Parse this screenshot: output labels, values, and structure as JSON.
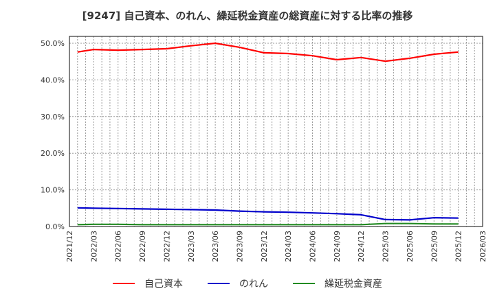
{
  "title": "[9247]  自己資本、のれん、繰延税金資産の総資産に対する比率の推移",
  "colors": {
    "equity": "#ff0000",
    "goodwill": "#0000cc",
    "deferred_tax": "#228b22",
    "grid": "#999999",
    "axis": "#333333"
  },
  "legend": [
    {
      "label": "自己資本",
      "color": "#ff0000"
    },
    {
      "label": "のれん",
      "color": "#0000cc"
    },
    {
      "label": "繰延税金資産",
      "color": "#228b22"
    }
  ],
  "chart_data": {
    "type": "line",
    "title": "[9247]  自己資本、のれん、繰延税金資産の総資産に対する比率の推移",
    "xlabel": "",
    "ylabel": "",
    "ylim": [
      0,
      50
    ],
    "yticks": [
      "0.0%",
      "10.0%",
      "20.0%",
      "30.0%",
      "40.0%",
      "50.0%"
    ],
    "xticks": [
      "2021/12",
      "2022/03",
      "2022/06",
      "2022/09",
      "2022/12",
      "2023/03",
      "2023/06",
      "2023/09",
      "2023/12",
      "2024/03",
      "2024/06",
      "2024/09",
      "2024/12",
      "2025/03",
      "2025/06",
      "2025/09",
      "2025/12",
      "2026/03"
    ],
    "grid": true,
    "legend_position": "bottom",
    "x": [
      "2022/01",
      "2022/03",
      "2022/06",
      "2022/09",
      "2022/12",
      "2023/03",
      "2023/06",
      "2023/09",
      "2023/12",
      "2024/03",
      "2024/06",
      "2024/09",
      "2024/12",
      "2025/03",
      "2025/06",
      "2025/09",
      "2025/12"
    ],
    "series": [
      {
        "name": "自己資本",
        "color": "#ff0000",
        "values": [
          47.6,
          48.3,
          48.1,
          48.3,
          48.5,
          49.3,
          50.0,
          48.9,
          47.4,
          47.2,
          46.6,
          45.5,
          46.1,
          45.1,
          45.9,
          47.0,
          47.6
        ]
      },
      {
        "name": "のれん",
        "color": "#0000cc",
        "values": [
          5.1,
          5.0,
          4.9,
          4.8,
          4.7,
          4.6,
          4.5,
          4.2,
          4.0,
          3.9,
          3.7,
          3.5,
          3.2,
          1.9,
          1.8,
          2.4,
          2.3
        ]
      },
      {
        "name": "繰延税金資産",
        "color": "#228b22",
        "values": [
          0.5,
          0.6,
          0.6,
          0.5,
          0.5,
          0.5,
          0.5,
          0.5,
          0.5,
          0.5,
          0.5,
          0.5,
          0.5,
          0.8,
          0.8,
          0.7,
          0.7
        ]
      }
    ]
  }
}
